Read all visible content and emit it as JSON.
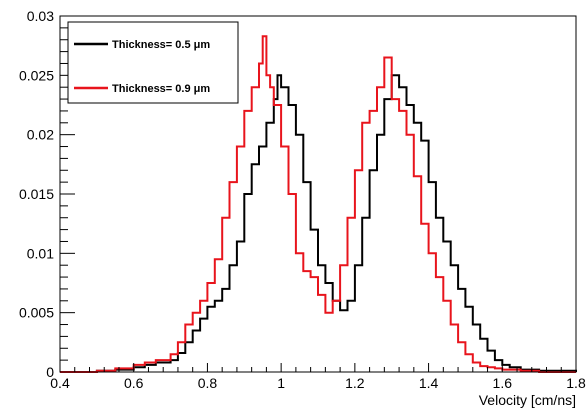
{
  "chart_data": {
    "type": "line",
    "style": "step-histogram",
    "xlabel": "Velocity [cm/ns]",
    "ylabel": "",
    "xlim": [
      0.4,
      1.8
    ],
    "ylim": [
      0,
      0.03
    ],
    "x_ticks": [
      "0.4",
      "0.6",
      "0.8",
      "1",
      "1.2",
      "1.4",
      "1.6",
      "1.8"
    ],
    "y_ticks": [
      "0",
      "0.005",
      "0.01",
      "0.015",
      "0.02",
      "0.025",
      "0.03"
    ],
    "grid": false,
    "legend_position": "top-left",
    "series": [
      {
        "name": "Thickness= 0.5 μm",
        "color": "#000000",
        "x": [
          0.4,
          0.5,
          0.55,
          0.6,
          0.63,
          0.66,
          0.7,
          0.72,
          0.74,
          0.76,
          0.78,
          0.8,
          0.82,
          0.84,
          0.86,
          0.88,
          0.9,
          0.92,
          0.94,
          0.96,
          0.98,
          0.99,
          1.0,
          1.02,
          1.04,
          1.06,
          1.08,
          1.1,
          1.12,
          1.14,
          1.16,
          1.18,
          1.2,
          1.22,
          1.24,
          1.26,
          1.28,
          1.3,
          1.32,
          1.34,
          1.36,
          1.38,
          1.4,
          1.42,
          1.44,
          1.46,
          1.48,
          1.5,
          1.52,
          1.54,
          1.56,
          1.58,
          1.6,
          1.62,
          1.65,
          1.7,
          1.8
        ],
        "values": [
          0.0,
          0.0001,
          0.0002,
          0.0004,
          0.0006,
          0.0008,
          0.001,
          0.0016,
          0.0025,
          0.0035,
          0.0045,
          0.0055,
          0.006,
          0.007,
          0.009,
          0.011,
          0.015,
          0.0175,
          0.019,
          0.021,
          0.023,
          0.025,
          0.024,
          0.0225,
          0.02,
          0.016,
          0.012,
          0.009,
          0.0075,
          0.006,
          0.0052,
          0.006,
          0.009,
          0.013,
          0.017,
          0.02,
          0.023,
          0.025,
          0.024,
          0.0225,
          0.021,
          0.0195,
          0.016,
          0.013,
          0.011,
          0.009,
          0.007,
          0.0055,
          0.004,
          0.0028,
          0.0018,
          0.001,
          0.0006,
          0.0004,
          0.0002,
          0.0001,
          0.0
        ]
      },
      {
        "name": "Thickness= 0.9 μm",
        "color": "#e8141c",
        "x": [
          0.4,
          0.5,
          0.55,
          0.6,
          0.63,
          0.66,
          0.7,
          0.72,
          0.74,
          0.76,
          0.78,
          0.8,
          0.82,
          0.84,
          0.86,
          0.88,
          0.9,
          0.92,
          0.94,
          0.95,
          0.96,
          0.97,
          0.98,
          1.0,
          1.02,
          1.04,
          1.06,
          1.08,
          1.1,
          1.12,
          1.14,
          1.16,
          1.18,
          1.2,
          1.22,
          1.24,
          1.26,
          1.28,
          1.3,
          1.32,
          1.34,
          1.36,
          1.38,
          1.4,
          1.42,
          1.44,
          1.46,
          1.48,
          1.5,
          1.52,
          1.54,
          1.56,
          1.58,
          1.6,
          1.65,
          1.7,
          1.8
        ],
        "values": [
          0.0,
          0.0001,
          0.0003,
          0.0006,
          0.0008,
          0.001,
          0.0015,
          0.0025,
          0.004,
          0.005,
          0.006,
          0.0075,
          0.0095,
          0.013,
          0.016,
          0.019,
          0.022,
          0.024,
          0.026,
          0.0283,
          0.025,
          0.024,
          0.0225,
          0.019,
          0.015,
          0.01,
          0.0085,
          0.008,
          0.0065,
          0.005,
          0.006,
          0.009,
          0.013,
          0.017,
          0.021,
          0.022,
          0.024,
          0.0265,
          0.023,
          0.022,
          0.02,
          0.0165,
          0.0125,
          0.01,
          0.008,
          0.006,
          0.004,
          0.0025,
          0.0015,
          0.0008,
          0.0005,
          0.0004,
          0.0003,
          0.0002,
          0.0001,
          0.0,
          0.0
        ]
      }
    ]
  }
}
